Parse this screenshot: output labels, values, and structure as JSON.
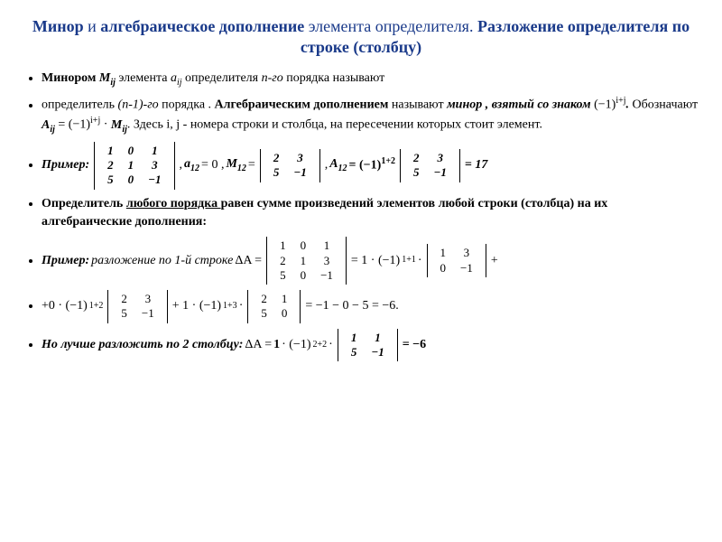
{
  "title": {
    "part1": "Минор",
    "sep1": " и ",
    "part2": "алгебраическое дополнение",
    "sep2": " элемента определителя. ",
    "part3": "Разложение определителя по строке (столбцу)"
  },
  "def1": {
    "lead": "Минором ",
    "m_ij": "M",
    "m_ij_sub": "ij",
    "mid1": " элемента ",
    "a_ij": "a",
    "a_ij_sub": "ij",
    "mid2": " определителя ",
    "n": "n-го",
    "tail": " порядка называют"
  },
  "def2": {
    "p1": "определитель ",
    "n1": "(n-1)-го",
    "p2": " порядка . ",
    "alg": "Алгебраическим дополнением",
    "p3": " называют ",
    "minor": "минор , взятый со знаком",
    "sign": " (−1)",
    "sign_sup": "i+j",
    "dot": ". ",
    "p4": "Обозначают ",
    "Aij": "A",
    "Aij_sub": "ij",
    "eq": " =  (−1)",
    "eq_sup": "i+j",
    "cdot": " · ",
    "Mij": "M",
    "Mij_sub": "ij",
    "tail": ".  Здесь i, j - номера строки и столбца, на пересечении которых стоит элемент."
  },
  "ex1": {
    "label": "Пример:",
    "mat3": [
      [
        "1",
        "0",
        "1"
      ],
      [
        "2",
        "1",
        "3"
      ],
      [
        "5",
        "0",
        "−1"
      ]
    ],
    "sep": " , ",
    "a12": "a",
    "a12_sub": "12",
    "a12_eq": "= 0 , ",
    "m12": "M",
    "m12_sub": "12",
    "m12_eq": "=",
    "mat2": [
      [
        "2",
        "3"
      ],
      [
        "5",
        "−1"
      ]
    ],
    "sep2": ", ",
    "A12": "A",
    "A12_sub": "12",
    "A12_eq": " = (−1)",
    "A12_sup": "1+2",
    "mat2b": [
      [
        "2",
        "3"
      ],
      [
        "5",
        "−1"
      ]
    ],
    "result": "= 17"
  },
  "rule": {
    "p1": "Определитель ",
    "u": "любого порядка ",
    "p2": "равен сумме произведений элементов любой строки (столбца) на их алгебраические дополнения:"
  },
  "ex2": {
    "label": "Пример:",
    "desc": " разложение по 1-й строке ",
    "deltaA": "ΔA  = ",
    "mat3": [
      [
        "1",
        "0",
        "1"
      ],
      [
        "2",
        "1",
        "3"
      ],
      [
        "5",
        "0",
        "−1"
      ]
    ],
    "eq1": "= 1 · (−1)",
    "sup1": "1+1",
    "cdot": " · ",
    "mat_a": [
      [
        "1",
        "3"
      ],
      [
        "0",
        "−1"
      ]
    ],
    "plus": "+"
  },
  "ex2b": {
    "p1": "+0 · (−1)",
    "sup1": "1+2",
    "mat_b": [
      [
        "2",
        "3"
      ],
      [
        "5",
        "−1"
      ]
    ],
    "p2": " + 1 · (−1)",
    "sup2": "1+3",
    "cdot": " · ",
    "mat_c": [
      [
        "2",
        "1"
      ],
      [
        "5",
        "0"
      ]
    ],
    "result": " = −1 − 0 − 5 = −6."
  },
  "ex3": {
    "p1": "Но лучше разложить по 2 столбцу:",
    "deltaA": "  ΔA = ",
    "one": "1",
    "p2": " · (−1)",
    "sup": "2+2",
    "cdot": " · ",
    "mat": [
      [
        "1",
        "1"
      ],
      [
        "5",
        "−1"
      ]
    ],
    "result": "= −6"
  }
}
